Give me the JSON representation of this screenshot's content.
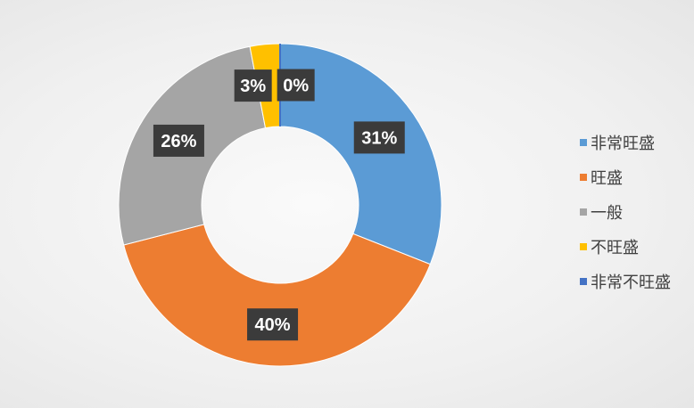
{
  "chart_data": {
    "type": "pie",
    "variant": "donut",
    "categories": [
      "非常旺盛",
      "旺盛",
      "一般",
      "不旺盛",
      "非常不旺盛"
    ],
    "values": [
      31,
      40,
      26,
      3,
      0
    ],
    "data_labels": [
      "31%",
      "40%",
      "26%",
      "3%",
      "0%"
    ],
    "colors": [
      "#5b9bd5",
      "#ed7d31",
      "#a5a5a5",
      "#ffc000",
      "#4472c4"
    ],
    "legend_position": "right",
    "label_box_color": "#3b3b3b"
  }
}
